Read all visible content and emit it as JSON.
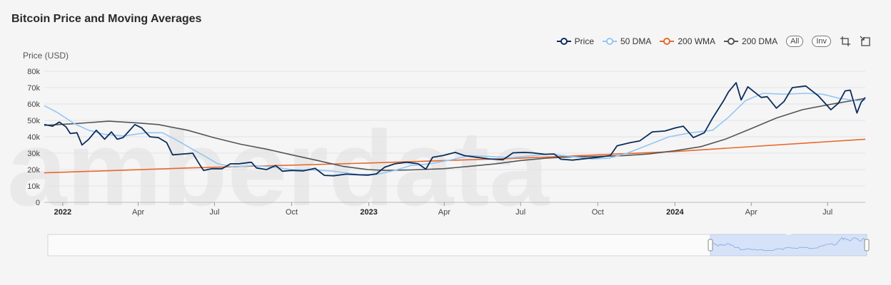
{
  "title": "Bitcoin Price and Moving Averages",
  "legend": {
    "items": [
      {
        "key": "price",
        "label": "Price",
        "color": "#0c2d5a"
      },
      {
        "key": "dma50",
        "label": "50 DMA",
        "color": "#94c6f2"
      },
      {
        "key": "wma200",
        "label": "200 WMA",
        "color": "#e8682a"
      },
      {
        "key": "dma200",
        "label": "200 DMA",
        "color": "#555555"
      }
    ],
    "all_label": "All",
    "inv_label": "Inv",
    "zoom_icon": "crop-icon",
    "reset_icon": "reset-zoom-icon"
  },
  "watermark": "amberdata",
  "chart_data": {
    "type": "line",
    "title": "Bitcoin Price and Moving Averages",
    "ylabel": "Price (USD)",
    "ylim": [
      0,
      80000
    ],
    "yticks": [
      {
        "v": 0,
        "label": "0"
      },
      {
        "v": 10000,
        "label": "10k"
      },
      {
        "v": 20000,
        "label": "20k"
      },
      {
        "v": 30000,
        "label": "30k"
      },
      {
        "v": 40000,
        "label": "40k"
      },
      {
        "v": 50000,
        "label": "50k"
      },
      {
        "v": 60000,
        "label": "60k"
      },
      {
        "v": 70000,
        "label": "70k"
      },
      {
        "v": 80000,
        "label": "80k"
      }
    ],
    "xlim": [
      "2021-12-10",
      "2024-08-15"
    ],
    "xticks": [
      {
        "date": "2022-01-01",
        "label": "2022",
        "bold": true
      },
      {
        "date": "2022-04-01",
        "label": "Apr"
      },
      {
        "date": "2022-07-01",
        "label": "Jul"
      },
      {
        "date": "2022-10-01",
        "label": "Oct"
      },
      {
        "date": "2023-01-01",
        "label": "2023",
        "bold": true
      },
      {
        "date": "2023-04-01",
        "label": "Apr"
      },
      {
        "date": "2023-07-01",
        "label": "Jul"
      },
      {
        "date": "2023-10-01",
        "label": "Oct"
      },
      {
        "date": "2024-01-01",
        "label": "2024",
        "bold": true
      },
      {
        "date": "2024-04-01",
        "label": "Apr"
      },
      {
        "date": "2024-07-01",
        "label": "Jul"
      }
    ],
    "grid": true,
    "legend_position": "top-right",
    "series": [
      {
        "key": "price",
        "name": "Price",
        "color": "#0c2d5a",
        "points": [
          [
            "2021-12-10",
            47500
          ],
          [
            "2021-12-20",
            46500
          ],
          [
            "2021-12-28",
            49000
          ],
          [
            "2022-01-05",
            46000
          ],
          [
            "2022-01-10",
            42000
          ],
          [
            "2022-01-18",
            42500
          ],
          [
            "2022-01-24",
            35000
          ],
          [
            "2022-02-01",
            38500
          ],
          [
            "2022-02-10",
            44000
          ],
          [
            "2022-02-20",
            38500
          ],
          [
            "2022-02-28",
            43000
          ],
          [
            "2022-03-07",
            38500
          ],
          [
            "2022-03-14",
            39500
          ],
          [
            "2022-03-28",
            47500
          ],
          [
            "2022-04-05",
            45500
          ],
          [
            "2022-04-15",
            40000
          ],
          [
            "2022-04-25",
            39500
          ],
          [
            "2022-05-05",
            36500
          ],
          [
            "2022-05-12",
            29000
          ],
          [
            "2022-05-25",
            29500
          ],
          [
            "2022-06-05",
            30000
          ],
          [
            "2022-06-14",
            22500
          ],
          [
            "2022-06-18",
            19500
          ],
          [
            "2022-06-28",
            20500
          ],
          [
            "2022-07-10",
            20500
          ],
          [
            "2022-07-20",
            23500
          ],
          [
            "2022-07-30",
            23500
          ],
          [
            "2022-08-14",
            24500
          ],
          [
            "2022-08-20",
            21000
          ],
          [
            "2022-09-01",
            20000
          ],
          [
            "2022-09-12",
            22500
          ],
          [
            "2022-09-20",
            19000
          ],
          [
            "2022-10-01",
            19500
          ],
          [
            "2022-10-15",
            19200
          ],
          [
            "2022-10-29",
            20800
          ],
          [
            "2022-11-09",
            16500
          ],
          [
            "2022-11-20",
            16200
          ],
          [
            "2022-12-05",
            17200
          ],
          [
            "2022-12-20",
            16800
          ],
          [
            "2022-12-31",
            16600
          ],
          [
            "2023-01-10",
            17400
          ],
          [
            "2023-01-20",
            21500
          ],
          [
            "2023-02-01",
            23500
          ],
          [
            "2023-02-15",
            24500
          ],
          [
            "2023-03-01",
            23500
          ],
          [
            "2023-03-10",
            20200
          ],
          [
            "2023-03-18",
            27500
          ],
          [
            "2023-03-30",
            28500
          ],
          [
            "2023-04-14",
            30500
          ],
          [
            "2023-04-25",
            28500
          ],
          [
            "2023-05-10",
            27500
          ],
          [
            "2023-05-25",
            26500
          ],
          [
            "2023-06-10",
            26000
          ],
          [
            "2023-06-22",
            30200
          ],
          [
            "2023-07-05",
            30500
          ],
          [
            "2023-07-15",
            30200
          ],
          [
            "2023-07-30",
            29300
          ],
          [
            "2023-08-10",
            29500
          ],
          [
            "2023-08-18",
            26300
          ],
          [
            "2023-09-01",
            25800
          ],
          [
            "2023-09-15",
            26600
          ],
          [
            "2023-10-01",
            27500
          ],
          [
            "2023-10-16",
            28500
          ],
          [
            "2023-10-24",
            34500
          ],
          [
            "2023-11-09",
            36500
          ],
          [
            "2023-11-20",
            37500
          ],
          [
            "2023-12-05",
            43000
          ],
          [
            "2023-12-20",
            43500
          ],
          [
            "2024-01-02",
            45500
          ],
          [
            "2024-01-11",
            46500
          ],
          [
            "2024-01-23",
            39500
          ],
          [
            "2024-02-05",
            42500
          ],
          [
            "2024-02-15",
            51500
          ],
          [
            "2024-02-28",
            62000
          ],
          [
            "2024-03-05",
            67500
          ],
          [
            "2024-03-14",
            73000
          ],
          [
            "2024-03-20",
            62500
          ],
          [
            "2024-03-28",
            70500
          ],
          [
            "2024-04-13",
            64000
          ],
          [
            "2024-04-20",
            64500
          ],
          [
            "2024-05-01",
            57500
          ],
          [
            "2024-05-10",
            61500
          ],
          [
            "2024-05-20",
            70000
          ],
          [
            "2024-06-05",
            71000
          ],
          [
            "2024-06-20",
            65000
          ],
          [
            "2024-07-05",
            56500
          ],
          [
            "2024-07-14",
            60500
          ],
          [
            "2024-07-22",
            68000
          ],
          [
            "2024-07-28",
            68500
          ],
          [
            "2024-08-05",
            54500
          ],
          [
            "2024-08-10",
            61000
          ],
          [
            "2024-08-15",
            64000
          ]
        ]
      },
      {
        "key": "dma50",
        "name": "50 DMA",
        "color": "#94c6f2",
        "points": [
          [
            "2021-12-10",
            59000
          ],
          [
            "2021-12-25",
            55000
          ],
          [
            "2022-01-15",
            48000
          ],
          [
            "2022-02-01",
            44000
          ],
          [
            "2022-02-20",
            41500
          ],
          [
            "2022-03-15",
            40500
          ],
          [
            "2022-04-10",
            42500
          ],
          [
            "2022-04-30",
            42500
          ],
          [
            "2022-05-15",
            38500
          ],
          [
            "2022-06-01",
            33500
          ],
          [
            "2022-06-20",
            28000
          ],
          [
            "2022-07-05",
            23500
          ],
          [
            "2022-07-25",
            21500
          ],
          [
            "2022-08-15",
            22500
          ],
          [
            "2022-09-05",
            21800
          ],
          [
            "2022-10-01",
            20000
          ],
          [
            "2022-10-30",
            19700
          ],
          [
            "2022-11-20",
            19000
          ],
          [
            "2022-12-20",
            17000
          ],
          [
            "2023-01-10",
            17000
          ],
          [
            "2023-02-01",
            19500
          ],
          [
            "2023-02-20",
            22500
          ],
          [
            "2023-03-15",
            23500
          ],
          [
            "2023-04-10",
            26000
          ],
          [
            "2023-05-01",
            28500
          ],
          [
            "2023-05-25",
            28000
          ],
          [
            "2023-06-20",
            27200
          ],
          [
            "2023-07-15",
            28500
          ],
          [
            "2023-08-05",
            29500
          ],
          [
            "2023-08-30",
            28000
          ],
          [
            "2023-09-25",
            26500
          ],
          [
            "2023-10-15",
            27000
          ],
          [
            "2023-11-05",
            30000
          ],
          [
            "2023-11-30",
            35000
          ],
          [
            "2023-12-25",
            40000
          ],
          [
            "2024-01-20",
            42500
          ],
          [
            "2024-02-15",
            44000
          ],
          [
            "2024-03-05",
            52000
          ],
          [
            "2024-03-25",
            62000
          ],
          [
            "2024-04-15",
            66500
          ],
          [
            "2024-05-10",
            66000
          ],
          [
            "2024-06-05",
            66500
          ],
          [
            "2024-06-25",
            66000
          ],
          [
            "2024-07-15",
            63500
          ],
          [
            "2024-08-05",
            62000
          ],
          [
            "2024-08-15",
            62500
          ]
        ]
      },
      {
        "key": "wma200",
        "name": "200 WMA",
        "color": "#e8682a",
        "points": [
          [
            "2021-12-10",
            18000
          ],
          [
            "2022-06-01",
            21000
          ],
          [
            "2023-01-01",
            24000
          ],
          [
            "2023-07-01",
            27000
          ],
          [
            "2024-01-01",
            31000
          ],
          [
            "2024-08-15",
            38500
          ]
        ]
      },
      {
        "key": "dma200",
        "name": "200 DMA",
        "color": "#555555",
        "points": [
          [
            "2021-12-10",
            47000
          ],
          [
            "2022-01-15",
            48000
          ],
          [
            "2022-02-25",
            49500
          ],
          [
            "2022-03-30",
            48500
          ],
          [
            "2022-04-25",
            47500
          ],
          [
            "2022-05-30",
            44000
          ],
          [
            "2022-06-30",
            39500
          ],
          [
            "2022-08-01",
            35500
          ],
          [
            "2022-09-01",
            32500
          ],
          [
            "2022-10-01",
            29000
          ],
          [
            "2022-11-01",
            25500
          ],
          [
            "2022-12-01",
            22000
          ],
          [
            "2022-12-31",
            20000
          ],
          [
            "2023-01-20",
            19500
          ],
          [
            "2023-02-20",
            19800
          ],
          [
            "2023-03-31",
            20500
          ],
          [
            "2023-05-01",
            22000
          ],
          [
            "2023-06-01",
            23500
          ],
          [
            "2023-07-01",
            25500
          ],
          [
            "2023-08-01",
            27000
          ],
          [
            "2023-09-01",
            27800
          ],
          [
            "2023-10-01",
            28000
          ],
          [
            "2023-11-01",
            28500
          ],
          [
            "2023-12-01",
            29500
          ],
          [
            "2024-01-01",
            31500
          ],
          [
            "2024-02-01",
            34000
          ],
          [
            "2024-03-01",
            38500
          ],
          [
            "2024-04-01",
            45000
          ],
          [
            "2024-05-01",
            51500
          ],
          [
            "2024-06-01",
            56500
          ],
          [
            "2024-07-01",
            59500
          ],
          [
            "2024-08-15",
            63500
          ]
        ]
      }
    ]
  },
  "navigator": {
    "window_start": "2021-12-10",
    "window_end": "2024-08-15",
    "range_start": "2010-08-01",
    "range_end": "2024-08-15"
  }
}
